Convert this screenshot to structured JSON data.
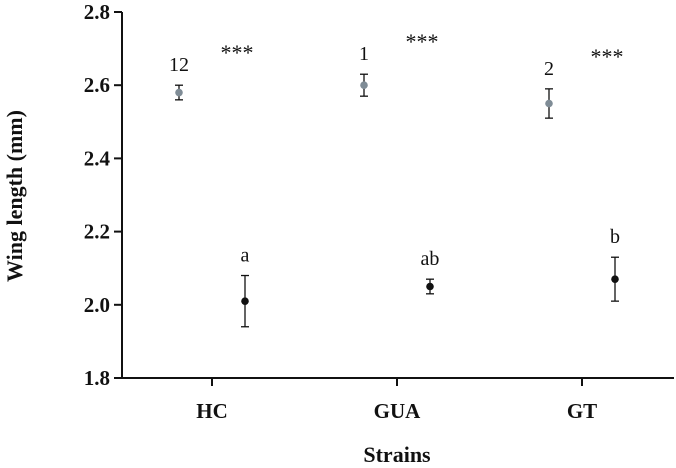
{
  "chart_data": {
    "type": "scatter",
    "categories": [
      "HC",
      "GUA",
      "GT"
    ],
    "xlabel": "Strains",
    "ylabel": "Wing length (mm)",
    "ylim": [
      1.8,
      2.8
    ],
    "yticks": [
      1.8,
      2.0,
      2.2,
      2.4,
      2.6,
      2.8
    ],
    "ytick_labels": [
      "1.8",
      "2.0",
      "2.2",
      "2.4",
      "2.6",
      "2.8"
    ],
    "grid": false,
    "series": [
      {
        "color": "#7f8c96",
        "points": [
          {
            "category": "HC",
            "value": 2.58,
            "err_low": 2.56,
            "err_high": 2.6,
            "label": "12"
          },
          {
            "category": "GUA",
            "value": 2.6,
            "err_low": 2.57,
            "err_high": 2.63,
            "label": "1"
          },
          {
            "category": "GT",
            "value": 2.55,
            "err_low": 2.51,
            "err_high": 2.59,
            "label": "2"
          }
        ]
      },
      {
        "color": "#111111",
        "points": [
          {
            "category": "HC",
            "value": 2.01,
            "err_low": 1.94,
            "err_high": 2.08,
            "label": "a"
          },
          {
            "category": "GUA",
            "value": 2.05,
            "err_low": 2.03,
            "err_high": 2.07,
            "label": "ab"
          },
          {
            "category": "GT",
            "value": 2.07,
            "err_low": 2.01,
            "err_high": 2.13,
            "label": "b"
          }
        ]
      }
    ],
    "significance": [
      {
        "category": "HC",
        "label": "***"
      },
      {
        "category": "GUA",
        "label": "***"
      },
      {
        "category": "GT",
        "label": "***"
      }
    ]
  }
}
